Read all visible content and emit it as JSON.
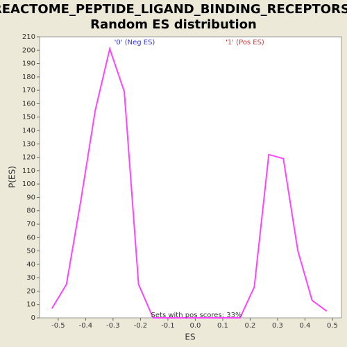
{
  "chart_data": {
    "type": "line",
    "title": [
      "REACTOME_PEPTIDE_LIGAND_BINDING_RECEPTORS:",
      "Random ES distribution"
    ],
    "x_label": "ES",
    "y_label": "P(ES)",
    "annotations": [
      {
        "text": "'0' (Neg ES)",
        "color": "#3333cc"
      },
      {
        "text": "'1' (Pos ES)",
        "color": "#cc3333"
      },
      {
        "text": "Sets with pos scores: 33%",
        "color": "#333333"
      }
    ],
    "x": [
      -0.523,
      -0.47,
      -0.418,
      -0.365,
      -0.312,
      -0.259,
      -0.207,
      -0.154,
      -0.101,
      -0.049,
      0.004,
      0.057,
      0.11,
      0.163,
      0.215,
      0.268,
      0.321,
      0.374,
      0.426,
      0.479
    ],
    "series": [
      {
        "color": "#ff44ff",
        "values": [
          7,
          25,
          87,
          155,
          201,
          169,
          25,
          0,
          0,
          0,
          0,
          0,
          0,
          0,
          23,
          122,
          119,
          50,
          13,
          5
        ]
      }
    ],
    "xlim": [
      -0.568,
      0.533
    ],
    "xticks": [
      -0.5,
      -0.4,
      -0.3,
      -0.2,
      -0.1,
      {
        "value": 0,
        "label": "0.0"
      },
      0.1,
      0.2,
      0.3,
      0.4,
      0.5
    ],
    "ylim": [
      0,
      210
    ],
    "yticks": [
      0,
      10,
      20,
      30,
      40,
      50,
      60,
      70,
      80,
      90,
      100,
      110,
      120,
      130,
      140,
      150,
      160,
      170,
      180,
      190,
      200,
      210
    ]
  }
}
